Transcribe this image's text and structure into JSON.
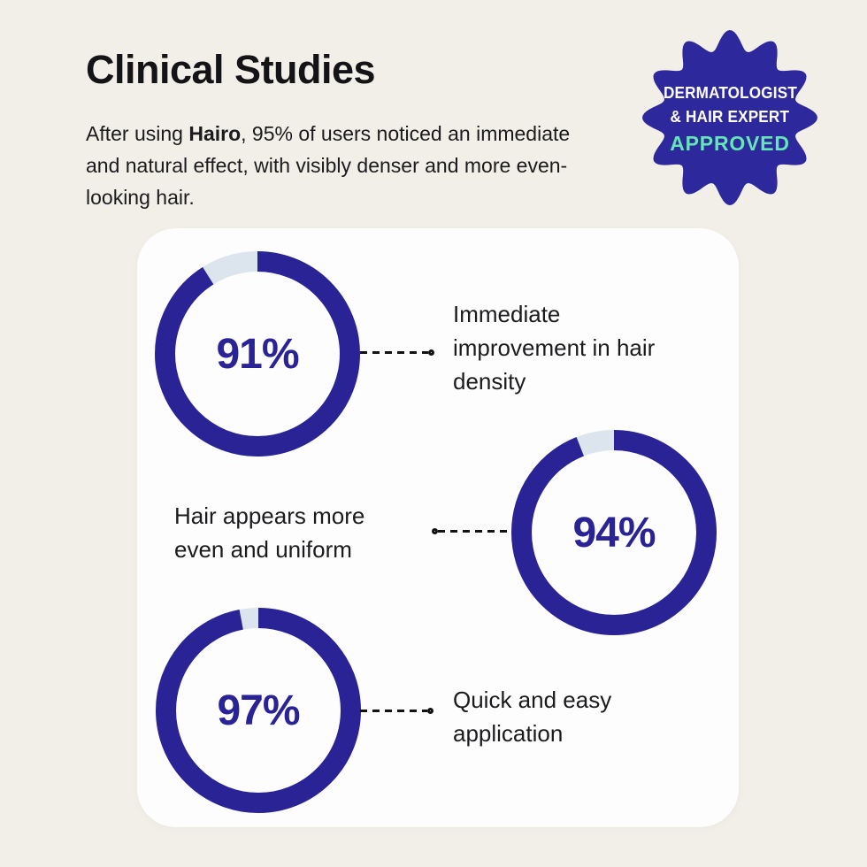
{
  "header": {
    "title": "Clinical Studies",
    "intro_prefix": "After using ",
    "intro_brand": "Hairo",
    "intro_suffix": ", 95% of users noticed an immediate and natural effect, with visibly denser and more even-looking hair."
  },
  "badge": {
    "line1": "DERMATOLOGIST",
    "line2": "& HAIR EXPERT",
    "line3": "APPROVED",
    "seal_color": "#2D299C",
    "text_color": "#FFFFFF",
    "approved_color": "#64E6B6"
  },
  "chart_data": [
    {
      "type": "pie",
      "style": "donut",
      "percent": 91,
      "value_label": "91%",
      "caption": "Immediate\nimprovement in hair\ndensity",
      "ring_color": "#2A2396",
      "track_color": "#DCE4EE"
    },
    {
      "type": "pie",
      "style": "donut",
      "percent": 94,
      "value_label": "94%",
      "caption": "Hair appears more\neven and uniform",
      "ring_color": "#2A2396",
      "track_color": "#DCE4EE"
    },
    {
      "type": "pie",
      "style": "donut",
      "percent": 97,
      "value_label": "97%",
      "caption": "Quick and easy\napplication",
      "ring_color": "#2A2396",
      "track_color": "#DCE4EE"
    }
  ],
  "colors": {
    "background": "#F2EFE9",
    "card": "#FDFDFD",
    "accent_blue": "#2A2396",
    "connector": "#121212"
  }
}
